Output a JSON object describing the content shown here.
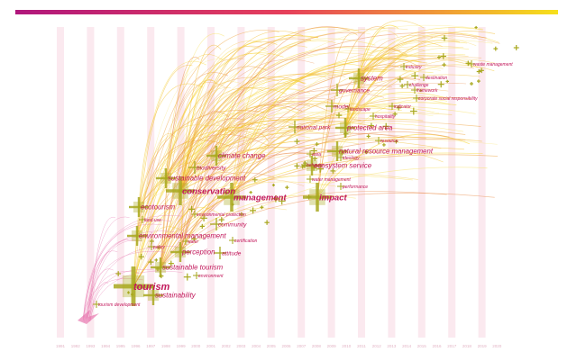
{
  "gradient": {
    "start": "#b0177c",
    "mid": "#e6405a",
    "end": "#f6e01c"
  },
  "stripe_color": "#fbe9ef",
  "node_color": "#a8a81e",
  "label_color": "#c2185b",
  "years": [
    "1991",
    "1992",
    "1993",
    "1994",
    "1995",
    "1996",
    "1997",
    "1998",
    "1999",
    "2000",
    "2001",
    "2002",
    "2003",
    "2004",
    "2005",
    "2006",
    "2007",
    "2008",
    "2009",
    "2010",
    "2011",
    "2012",
    "2013",
    "2014",
    "2015",
    "2016",
    "2017",
    "2018",
    "2019",
    "2020"
  ],
  "keywords": [
    {
      "label": "tourism",
      "size": "xl"
    },
    {
      "label": "sustainability",
      "size": "m"
    },
    {
      "label": "tourism development",
      "size": "xs"
    },
    {
      "label": "sustainable tourism",
      "size": "m"
    },
    {
      "label": "environment",
      "size": "xs"
    },
    {
      "label": "perception",
      "size": "m"
    },
    {
      "label": "attitude",
      "size": "s"
    },
    {
      "label": "policy",
      "size": "xs"
    },
    {
      "label": "water",
      "size": "xs"
    },
    {
      "label": "certification",
      "size": "xs"
    },
    {
      "label": "environmental management",
      "size": "m"
    },
    {
      "label": "land use",
      "size": "xs"
    },
    {
      "label": "community",
      "size": "s"
    },
    {
      "label": "environmental protection",
      "size": "xs"
    },
    {
      "label": "ecotourism",
      "size": "m"
    },
    {
      "label": "conservation",
      "size": "l"
    },
    {
      "label": "sustainable development",
      "size": "m"
    },
    {
      "label": "biodiversity",
      "size": "s"
    },
    {
      "label": "climate change",
      "size": "m"
    },
    {
      "label": "management",
      "size": "l"
    },
    {
      "label": "impact",
      "size": "l"
    },
    {
      "label": "water management",
      "size": "xs"
    },
    {
      "label": "performance",
      "size": "xs"
    },
    {
      "label": "ecosystem service",
      "size": "m"
    },
    {
      "label": "natural resource management",
      "size": "m"
    },
    {
      "label": "behavior",
      "size": "xs"
    },
    {
      "label": "area",
      "size": "xs"
    },
    {
      "label": "ideology",
      "size": "xs"
    },
    {
      "label": "resource",
      "size": "xs"
    },
    {
      "label": "model",
      "size": "s"
    },
    {
      "label": "protected area",
      "size": "m"
    },
    {
      "label": "national park",
      "size": "s"
    },
    {
      "label": "landscape",
      "size": "xs"
    },
    {
      "label": "indicator",
      "size": "xs"
    },
    {
      "label": "hospitality",
      "size": "xs"
    },
    {
      "label": "system",
      "size": "m"
    },
    {
      "label": "governance",
      "size": "s"
    },
    {
      "label": "industry",
      "size": "xs"
    },
    {
      "label": "destination",
      "size": "xs"
    },
    {
      "label": "challenge",
      "size": "xs"
    },
    {
      "label": "framework",
      "size": "xs"
    },
    {
      "label": "corporate social responsibility",
      "size": "xs"
    },
    {
      "label": "waste management",
      "size": "xs"
    }
  ]
}
